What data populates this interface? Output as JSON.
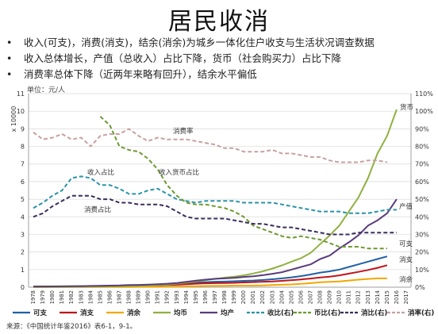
{
  "slide": {
    "title": "居民收消",
    "bullets": [
      "收入(可支)，消费(消支)，结余(消余)为城乡一体化住户收支与生活状况调查数据",
      "收入总体增长，产值（总收入）占比下降，货币（社会购买力）占比下降",
      "消费率总体下降（近两年来略有回升），结余水平偏低"
    ],
    "source": "来源：《中国统计年鉴2016》表6-1，9-1。"
  },
  "chart_data": {
    "type": "line",
    "unit_label": "单位：元/人",
    "y_left_multiplier": "x 10000",
    "ylim_left": [
      0,
      11
    ],
    "y_left_ticks": [
      "0",
      "1",
      "2",
      "3",
      "4",
      "5",
      "6",
      "7",
      "8",
      "9",
      "10",
      "11"
    ],
    "ylim_right": [
      0,
      110
    ],
    "y_right_ticks": [
      "0%",
      "10%",
      "20%",
      "30%",
      "40%",
      "50%",
      "60%",
      "70%",
      "80%",
      "90%",
      "100%",
      "110%"
    ],
    "x": [
      "1978",
      "1979",
      "1980",
      "1981",
      "1982",
      "1983",
      "1984",
      "1985",
      "1986",
      "1987",
      "1988",
      "1989",
      "1990",
      "1991",
      "1992",
      "1993",
      "1994",
      "1995",
      "1996",
      "1997",
      "1998",
      "1999",
      "2000",
      "2001",
      "2002",
      "2003",
      "2004",
      "2005",
      "2006",
      "2007",
      "2008",
      "2009",
      "2010",
      "2011",
      "2012",
      "2013",
      "2014",
      "2015",
      "2016",
      "2017"
    ],
    "grid": true,
    "legend_position": "bottom",
    "series": [
      {
        "name": "可支",
        "axis": "left",
        "color": "#1f5fa6",
        "dash": "",
        "values": [
          0.03,
          0.035,
          0.04,
          0.045,
          0.05,
          0.055,
          0.06,
          0.07,
          0.08,
          0.09,
          0.1,
          0.11,
          0.12,
          0.13,
          0.15,
          0.18,
          0.22,
          0.26,
          0.29,
          0.31,
          0.32,
          0.34,
          0.36,
          0.38,
          0.41,
          0.45,
          0.5,
          0.56,
          0.63,
          0.72,
          0.83,
          0.9,
          1.0,
          1.15,
          1.3,
          1.45,
          1.6,
          1.75,
          null,
          null
        ]
      },
      {
        "name": "消支",
        "axis": "left",
        "color": "#c0141b",
        "dash": "",
        "values": [
          0.025,
          0.03,
          0.033,
          0.036,
          0.04,
          0.045,
          0.05,
          0.06,
          0.066,
          0.075,
          0.085,
          0.09,
          0.1,
          0.11,
          0.12,
          0.14,
          0.17,
          0.2,
          0.22,
          0.23,
          0.24,
          0.25,
          0.27,
          0.29,
          0.31,
          0.33,
          0.36,
          0.4,
          0.44,
          0.49,
          0.55,
          0.6,
          0.67,
          0.77,
          0.87,
          0.98,
          1.1,
          1.25,
          null,
          null
        ]
      },
      {
        "name": "消余",
        "axis": "left",
        "color": "#f2a800",
        "dash": "",
        "values": [
          0.005,
          0.005,
          0.007,
          0.009,
          0.01,
          0.01,
          0.01,
          0.01,
          0.014,
          0.015,
          0.015,
          0.02,
          0.02,
          0.02,
          0.03,
          0.04,
          0.05,
          0.06,
          0.07,
          0.08,
          0.08,
          0.09,
          0.09,
          0.09,
          0.1,
          0.12,
          0.14,
          0.16,
          0.19,
          0.23,
          0.28,
          0.3,
          0.33,
          0.38,
          0.43,
          0.47,
          0.5,
          0.5,
          null,
          null
        ]
      },
      {
        "name": "均币",
        "axis": "left",
        "color": "#8fb140",
        "dash": "",
        "values": [
          0.01,
          0.01,
          0.012,
          0.015,
          0.02,
          0.025,
          0.03,
          0.04,
          0.05,
          0.06,
          0.07,
          0.08,
          0.1,
          0.12,
          0.15,
          0.2,
          0.26,
          0.33,
          0.4,
          0.47,
          0.54,
          0.6,
          0.67,
          0.78,
          0.9,
          1.06,
          1.24,
          1.45,
          1.65,
          1.95,
          2.45,
          2.95,
          3.5,
          4.3,
          5.1,
          6.2,
          7.6,
          8.6,
          10.1,
          null
        ]
      },
      {
        "name": "均产",
        "axis": "left",
        "color": "#5a3c7c",
        "dash": "",
        "values": [
          0.04,
          0.04,
          0.045,
          0.05,
          0.055,
          0.06,
          0.07,
          0.08,
          0.09,
          0.1,
          0.12,
          0.13,
          0.15,
          0.17,
          0.2,
          0.24,
          0.3,
          0.37,
          0.43,
          0.48,
          0.5,
          0.53,
          0.58,
          0.62,
          0.68,
          0.76,
          0.85,
          1.0,
          1.15,
          1.3,
          1.6,
          1.8,
          2.2,
          2.55,
          2.95,
          3.5,
          3.8,
          4.2,
          5.0,
          null
        ]
      },
      {
        "name": "收比(右)",
        "axis": "right",
        "color": "#2a93a8",
        "dash": "5 3",
        "values": [
          45,
          48,
          52,
          55,
          62,
          63,
          62,
          58,
          58,
          56,
          53,
          53,
          55,
          56,
          53,
          50,
          49,
          48,
          49,
          49,
          49,
          49,
          48,
          48,
          48,
          48,
          47,
          46,
          45,
          44,
          43,
          43,
          43,
          42,
          42,
          42,
          43,
          44,
          44,
          null
        ]
      },
      {
        "name": "币比(右)",
        "axis": "right",
        "color": "#6d9a2f",
        "dash": "5 3",
        "values": [
          null,
          null,
          null,
          null,
          null,
          null,
          null,
          97,
          92,
          80,
          78,
          77,
          73,
          67,
          58,
          52,
          48,
          47,
          47,
          46,
          45,
          43,
          40,
          35,
          33,
          31,
          29,
          28,
          29,
          28,
          27,
          25,
          23,
          23,
          23,
          22,
          22,
          22,
          null,
          null
        ]
      },
      {
        "name": "消比(右)",
        "axis": "right",
        "color": "#3a2d5c",
        "dash": "5 3",
        "values": [
          40,
          42,
          46,
          49,
          52,
          52,
          52,
          50,
          50,
          48,
          48,
          47,
          47,
          47,
          46,
          43,
          40,
          39,
          39,
          39,
          39,
          38,
          37,
          36,
          36,
          35,
          34,
          34,
          33,
          32,
          31,
          30,
          30,
          30,
          31,
          31,
          31,
          31,
          31,
          null
        ]
      },
      {
        "name": "消率(右)",
        "axis": "right",
        "color": "#c8a0a0",
        "dash": "5 3",
        "values": [
          88,
          84,
          85,
          87,
          84,
          85,
          80,
          86,
          87,
          87,
          90,
          86,
          83,
          85,
          84,
          84,
          84,
          83,
          82,
          81,
          79,
          79,
          77,
          77,
          77,
          78,
          76,
          76,
          75,
          74,
          74,
          72,
          71,
          71,
          71,
          72,
          72,
          71,
          null,
          null
        ]
      }
    ],
    "annotations": [
      {
        "text": "消费率"
      },
      {
        "text": "收入占比"
      },
      {
        "text": "收入货币占比"
      },
      {
        "text": "消费占比"
      },
      {
        "text": "货币"
      },
      {
        "text": "产值"
      },
      {
        "text": "可支"
      },
      {
        "text": "消支"
      },
      {
        "text": "消余"
      }
    ]
  }
}
